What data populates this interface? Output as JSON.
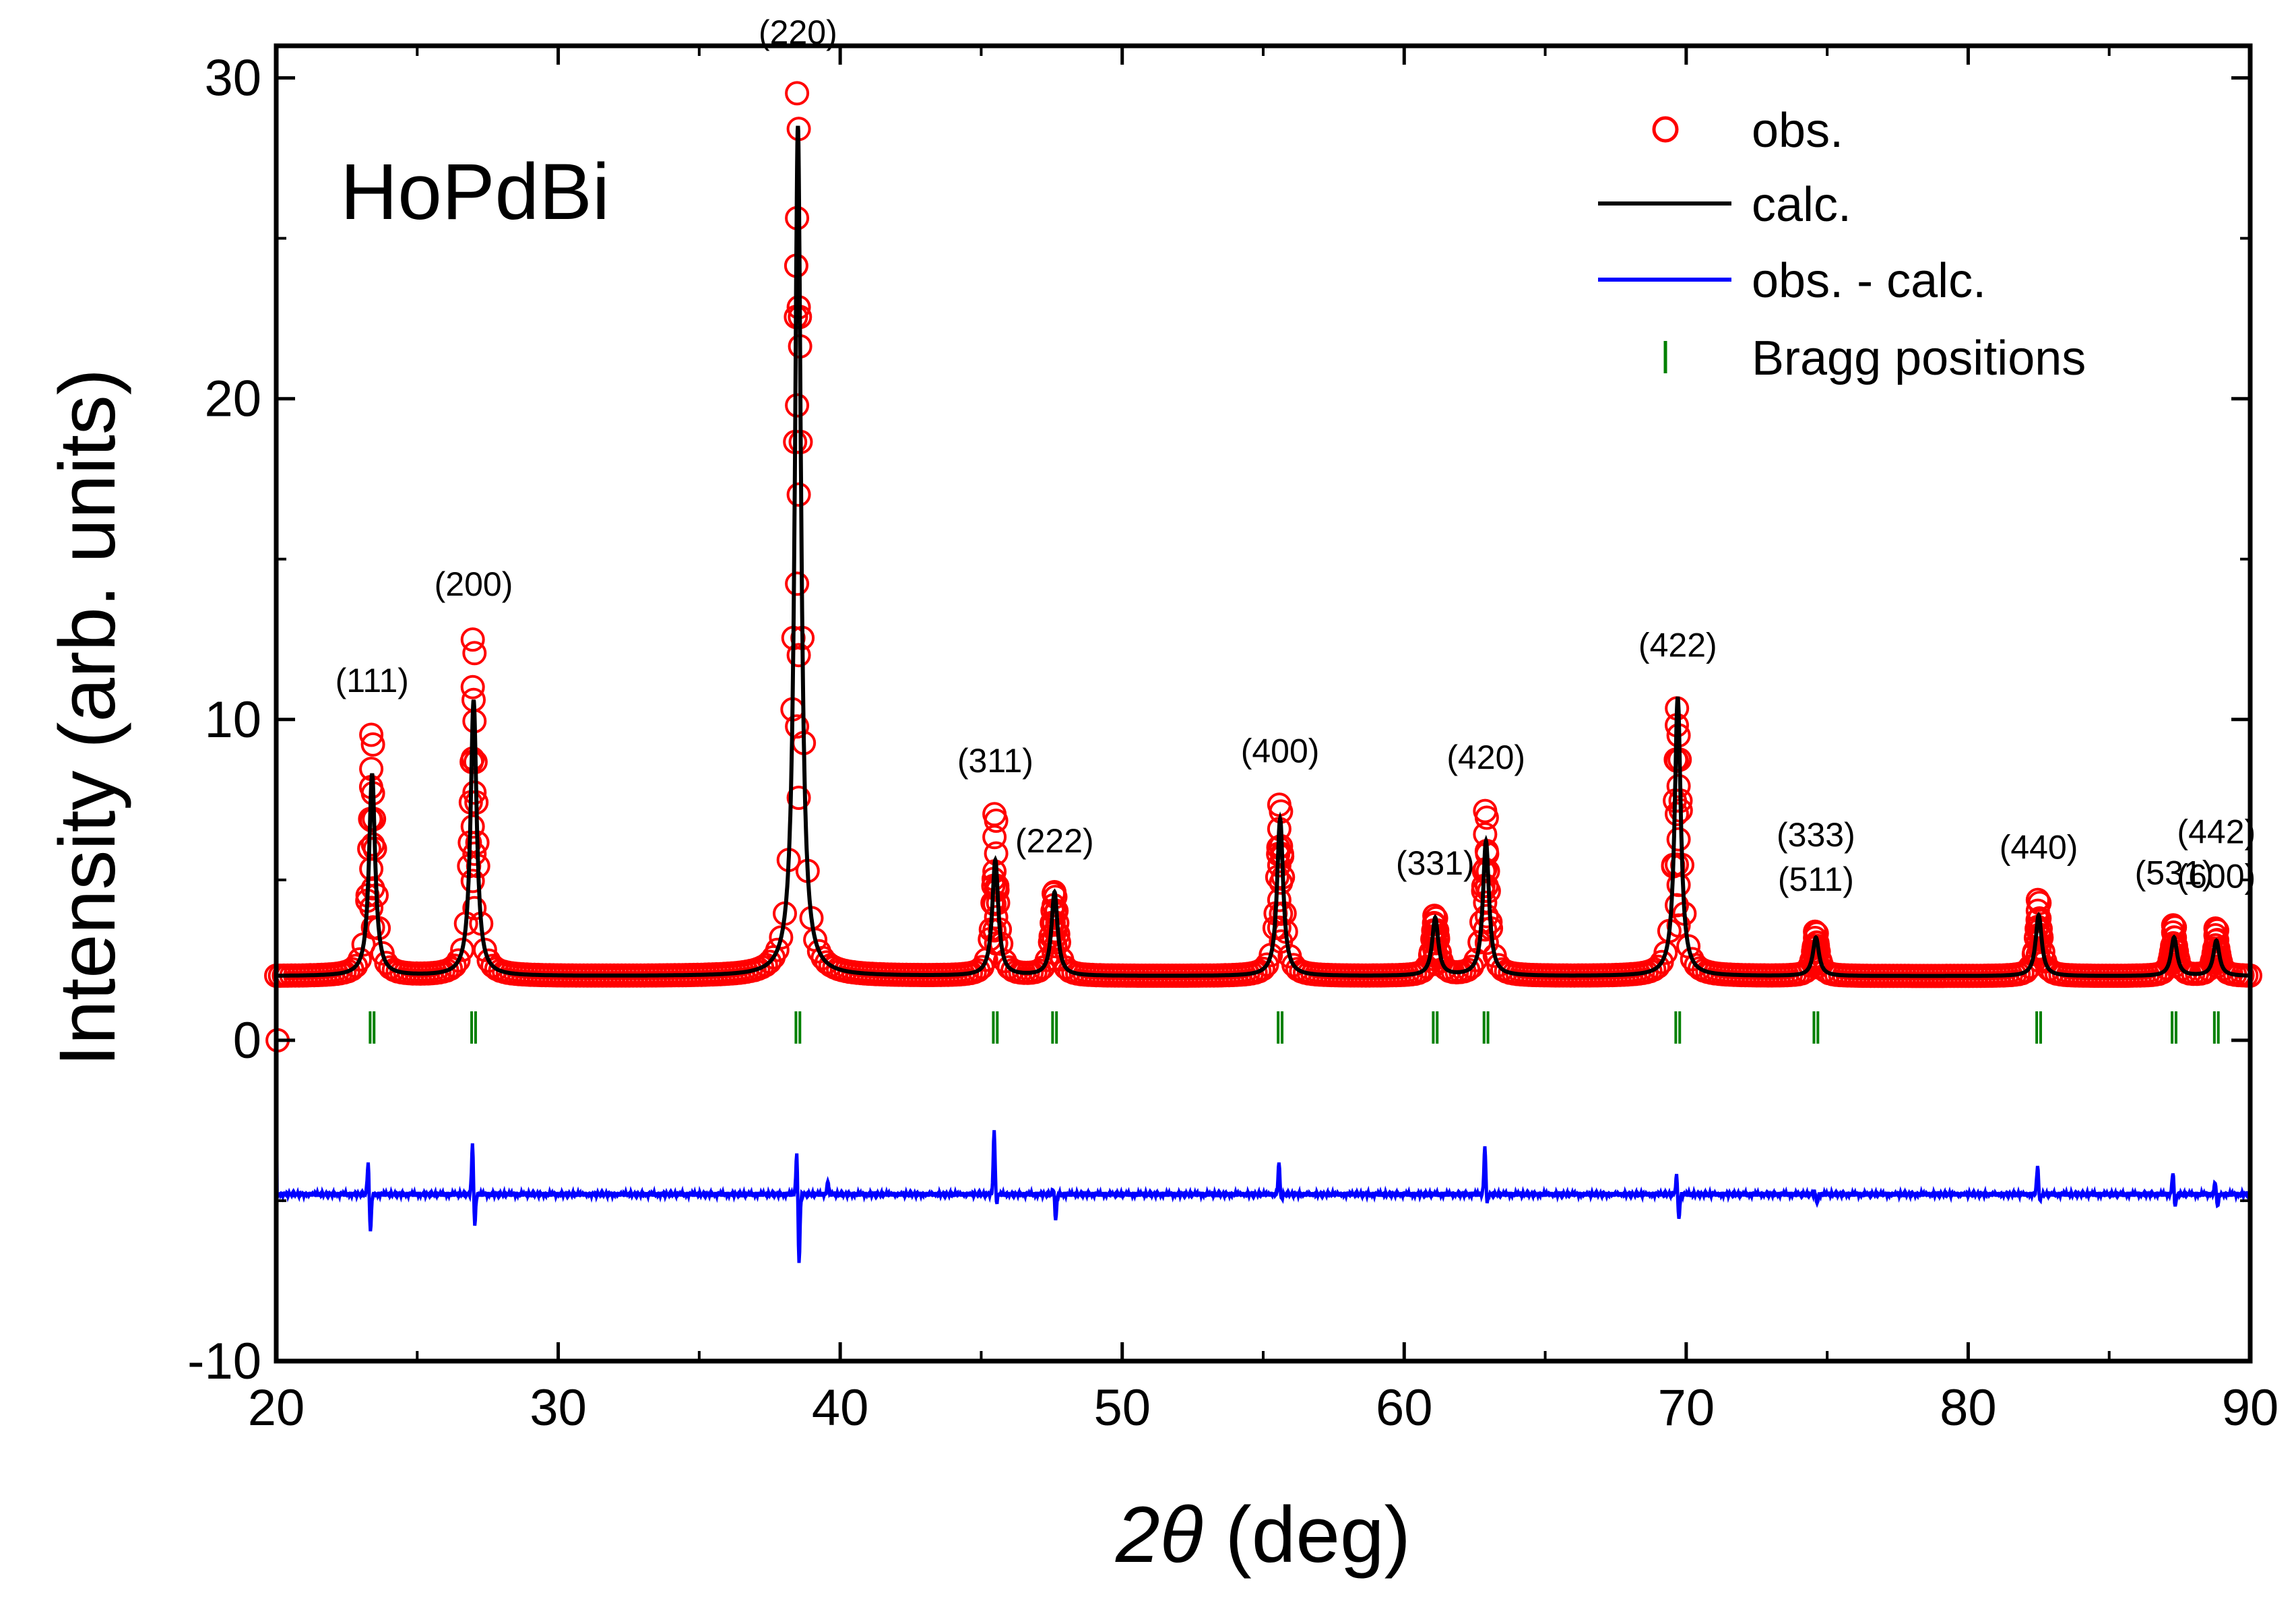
{
  "chart_data": {
    "type": "scatter",
    "sample_label": "HoPdBi",
    "xlabel": "(deg)",
    "xlabel_symbol": "2θ",
    "ylabel": "Intensity (arb. units)",
    "xlim": [
      20,
      90
    ],
    "ylim": [
      -10,
      31
    ],
    "xticks": [
      20,
      30,
      40,
      50,
      60,
      70,
      80,
      90
    ],
    "yticks": [
      -10,
      0,
      10,
      20,
      30
    ],
    "grid": false,
    "legend_position": "top-right",
    "background_level": 2.0,
    "difference_offset": -4.8,
    "colors": {
      "obs": "#ff0000",
      "calc": "#000000",
      "diff": "#0000ff",
      "bragg": "#008000"
    },
    "series": [
      {
        "name": "obs.",
        "style": "open-circle"
      },
      {
        "name": "calc.",
        "style": "line"
      },
      {
        "name": "obs. - calc.",
        "style": "line"
      },
      {
        "name": "Bragg positions",
        "style": "tick"
      }
    ],
    "peaks": [
      {
        "label": "(111)",
        "x": 23.4,
        "calc_peak": 8.3,
        "obs_peak": 9.6
      },
      {
        "label": "(200)",
        "x": 27.0,
        "calc_peak": 10.6,
        "obs_peak": 12.6
      },
      {
        "label": "(220)",
        "x": 38.5,
        "calc_peak": 28.5,
        "obs_peak": 29.8
      },
      {
        "label": "(311)",
        "x": 45.5,
        "calc_peak": 5.6,
        "obs_peak": 7.1
      },
      {
        "label": "(222)",
        "x": 47.6,
        "calc_peak": 4.6,
        "obs_peak": 4.6
      },
      {
        "label": "(400)",
        "x": 55.6,
        "calc_peak": 6.9,
        "obs_peak": 7.4
      },
      {
        "label": "(331)",
        "x": 61.1,
        "calc_peak": 3.8,
        "obs_peak": 3.9
      },
      {
        "label": "(420)",
        "x": 62.9,
        "calc_peak": 6.2,
        "obs_peak": 7.2
      },
      {
        "label": "(422)",
        "x": 69.7,
        "calc_peak": 10.7,
        "obs_peak": 9.9
      },
      {
        "label": "(333)\n(511)",
        "x": 74.6,
        "calc_peak": 3.2,
        "obs_peak": 3.4
      },
      {
        "label": "(440)",
        "x": 82.5,
        "calc_peak": 3.9,
        "obs_peak": 4.4
      },
      {
        "label": "(531)",
        "x": 87.3,
        "calc_peak": 3.2,
        "obs_peak": 3.6
      },
      {
        "label": "(442)\n(600)",
        "x": 88.8,
        "calc_peak": 3.1,
        "obs_peak": 3.5
      }
    ],
    "bragg_positions": [
      23.4,
      27.0,
      38.5,
      45.5,
      47.6,
      55.6,
      61.1,
      62.9,
      69.7,
      74.6,
      82.5,
      87.3,
      88.8
    ],
    "bragg_y": 0.4,
    "diff_features": [
      {
        "x": 23.3,
        "up": 1.0,
        "down": -1.2
      },
      {
        "x": 27.0,
        "up": 1.6,
        "down": -1.0
      },
      {
        "x": 38.5,
        "up": 1.3,
        "down": -2.2
      },
      {
        "x": 39.6,
        "up": 0.4,
        "down": 0
      },
      {
        "x": 45.5,
        "up": 2.0,
        "down": -0.3
      },
      {
        "x": 47.6,
        "up": 0.2,
        "down": -0.8
      },
      {
        "x": 55.6,
        "up": 1.0,
        "down": -0.2
      },
      {
        "x": 62.9,
        "up": 1.5,
        "down": -0.3
      },
      {
        "x": 69.7,
        "up": 0.6,
        "down": -0.8
      },
      {
        "x": 74.6,
        "up": 0.1,
        "down": -0.3
      },
      {
        "x": 82.5,
        "up": 0.9,
        "down": -0.2
      },
      {
        "x": 87.3,
        "up": 0.7,
        "down": -0.4
      },
      {
        "x": 88.8,
        "up": 0.4,
        "down": -0.4
      }
    ]
  }
}
